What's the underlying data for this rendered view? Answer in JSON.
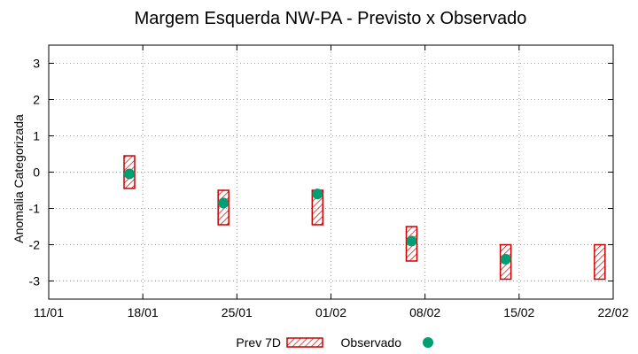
{
  "chart_data": {
    "type": "scatter",
    "title": "Margem Esquerda NW-PA - Previsto x Observado",
    "xlabel": "",
    "ylabel": "Anomalia Categorizada",
    "x_ticks": [
      "11/01",
      "18/01",
      "25/01",
      "01/02",
      "08/02",
      "15/02",
      "22/02"
    ],
    "xlim": [
      "11/01",
      "22/02"
    ],
    "ylim": [
      -3.5,
      3.5
    ],
    "y_ticks": [
      -3,
      -2,
      -1,
      0,
      1,
      2,
      3
    ],
    "grid": true,
    "legend_position": "bottom",
    "series": [
      {
        "name": "Prev 7D",
        "kind": "range-box",
        "color": "#cc0000",
        "points": [
          {
            "x": "17/01",
            "low": -0.45,
            "high": 0.45
          },
          {
            "x": "24/01",
            "low": -1.45,
            "high": -0.5
          },
          {
            "x": "31/01",
            "low": -1.45,
            "high": -0.5
          },
          {
            "x": "07/02",
            "low": -2.45,
            "high": -1.5
          },
          {
            "x": "14/02",
            "low": -2.95,
            "high": -2.0
          },
          {
            "x": "21/02",
            "low": -2.95,
            "high": -2.0
          }
        ]
      },
      {
        "name": "Observado",
        "kind": "point",
        "color": "#009e73",
        "points": [
          {
            "x": "17/01",
            "y": -0.05
          },
          {
            "x": "24/01",
            "y": -0.85
          },
          {
            "x": "31/01",
            "y": -0.6
          },
          {
            "x": "07/02",
            "y": -1.9
          },
          {
            "x": "14/02",
            "y": -2.4
          }
        ]
      }
    ]
  }
}
